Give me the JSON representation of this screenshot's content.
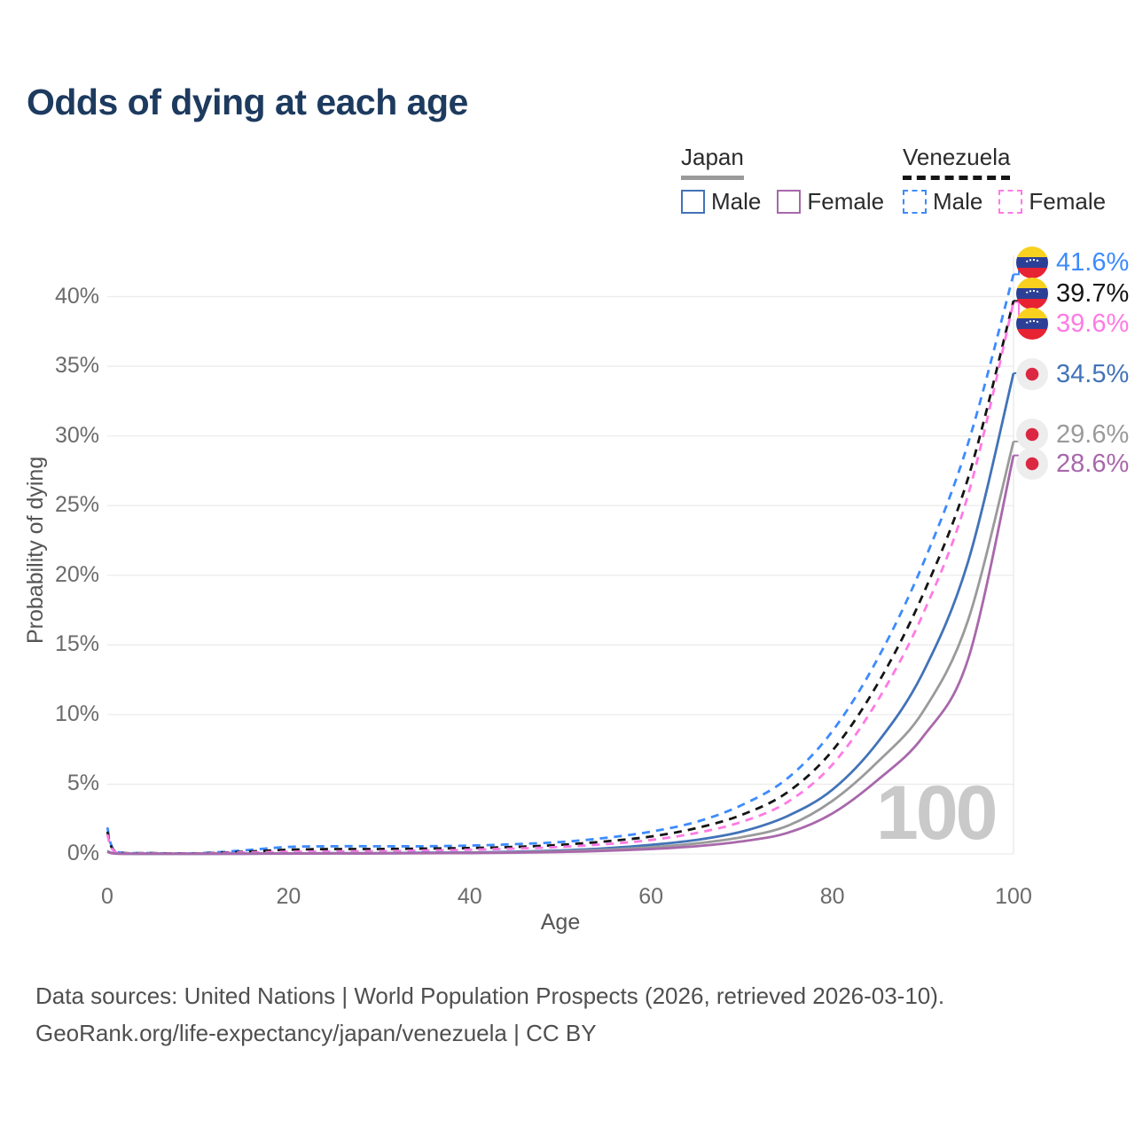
{
  "title": "Odds of dying at each age",
  "legend": {
    "groups": [
      {
        "label": "Japan",
        "line_color": "#9a9a9a",
        "line_style": "solid",
        "items": [
          {
            "label": "Male",
            "color": "#4273b8"
          },
          {
            "label": "Female",
            "color": "#a868ab"
          }
        ]
      },
      {
        "label": "Venezuela",
        "line_color": "#151515",
        "line_style": "dashed",
        "items": [
          {
            "label": "Male",
            "color": "#3d8bfd"
          },
          {
            "label": "Female",
            "color": "#ff7ae4"
          }
        ]
      }
    ]
  },
  "chart_data": {
    "type": "line",
    "title": "Odds of dying at each age",
    "xlabel": "Age",
    "ylabel": "Probability of dying",
    "xlim": [
      0,
      100
    ],
    "ylim": [
      0,
      43
    ],
    "grid": "horizontal",
    "x_ticks": {
      "values": [
        0,
        20,
        40,
        60,
        80,
        100
      ],
      "labels": [
        "0",
        "20",
        "40",
        "60",
        "80",
        "100"
      ]
    },
    "y_ticks": {
      "values": [
        0,
        5,
        10,
        15,
        20,
        25,
        30,
        35,
        40
      ],
      "labels": [
        "0%",
        "5%",
        "10%",
        "15%",
        "20%",
        "25%",
        "30%",
        "35%",
        "40%"
      ]
    },
    "age_marker": {
      "value": 100,
      "watermark": "100"
    },
    "x": [
      0,
      1,
      5,
      10,
      15,
      20,
      25,
      30,
      35,
      40,
      45,
      50,
      55,
      60,
      65,
      70,
      75,
      80,
      85,
      90,
      95,
      100
    ],
    "series": [
      {
        "name": "Venezuela Male",
        "country": "Venezuela",
        "sex": "Male",
        "style": "dashed",
        "color": "#3d8bfd",
        "end_label": "41.6%",
        "end_value": 41.6,
        "values": [
          1.9,
          0.15,
          0.06,
          0.05,
          0.25,
          0.5,
          0.55,
          0.55,
          0.55,
          0.6,
          0.7,
          0.85,
          1.15,
          1.6,
          2.3,
          3.5,
          5.4,
          8.8,
          14.0,
          20.8,
          29.5,
          41.6
        ]
      },
      {
        "name": "Venezuela Both sexes",
        "country": "Venezuela",
        "sex": "Both",
        "style": "dashed",
        "color": "#151515",
        "end_label": "39.7%",
        "end_value": 39.7,
        "values": [
          1.6,
          0.12,
          0.05,
          0.04,
          0.15,
          0.3,
          0.35,
          0.35,
          0.38,
          0.42,
          0.5,
          0.65,
          0.9,
          1.25,
          1.85,
          2.8,
          4.4,
          7.4,
          12.2,
          18.6,
          27.0,
          39.7
        ]
      },
      {
        "name": "Venezuela Female",
        "country": "Venezuela",
        "sex": "Female",
        "style": "dashed",
        "color": "#ff7ae4",
        "end_label": "39.6%",
        "end_value": 39.6,
        "values": [
          1.4,
          0.1,
          0.04,
          0.03,
          0.1,
          0.15,
          0.18,
          0.2,
          0.24,
          0.3,
          0.38,
          0.5,
          0.7,
          1.0,
          1.5,
          2.3,
          3.7,
          6.4,
          11.0,
          17.2,
          25.8,
          39.6
        ]
      },
      {
        "name": "Japan Male",
        "country": "Japan",
        "sex": "Male",
        "style": "solid",
        "color": "#4273b8",
        "end_label": "34.5%",
        "end_value": 34.5,
        "values": [
          0.2,
          0.03,
          0.01,
          0.01,
          0.02,
          0.04,
          0.05,
          0.06,
          0.08,
          0.1,
          0.16,
          0.25,
          0.4,
          0.65,
          1.0,
          1.6,
          2.7,
          4.6,
          8.0,
          13.0,
          21.0,
          34.5
        ]
      },
      {
        "name": "Japan Both sexes",
        "country": "Japan",
        "sex": "Both",
        "style": "solid",
        "color": "#9a9a9a",
        "end_label": "29.6%",
        "end_value": 29.6,
        "values": [
          0.18,
          0.03,
          0.01,
          0.01,
          0.02,
          0.03,
          0.04,
          0.05,
          0.06,
          0.08,
          0.12,
          0.19,
          0.3,
          0.48,
          0.75,
          1.2,
          2.0,
          3.8,
          6.6,
          10.2,
          16.8,
          29.6
        ]
      },
      {
        "name": "Japan Female",
        "country": "Japan",
        "sex": "Female",
        "style": "solid",
        "color": "#a868ab",
        "end_label": "28.6%",
        "end_value": 28.6,
        "values": [
          0.16,
          0.02,
          0.01,
          0.01,
          0.01,
          0.02,
          0.03,
          0.03,
          0.05,
          0.06,
          0.09,
          0.14,
          0.22,
          0.35,
          0.55,
          0.9,
          1.5,
          2.9,
          5.3,
          8.4,
          14.0,
          28.6
        ]
      }
    ]
  },
  "footer": {
    "line1": "Data sources: United Nations | World Population Prospects (2026, retrieved 2026-03-10).",
    "line2": "GeoRank.org/life-expectancy/japan/venezuela | CC BY"
  }
}
